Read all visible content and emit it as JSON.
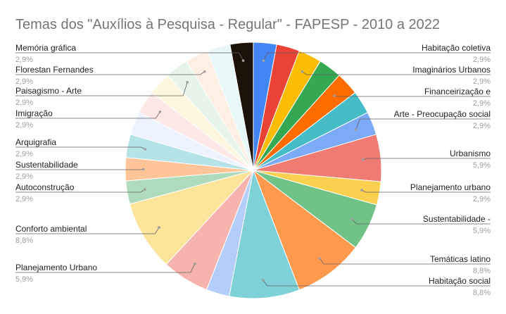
{
  "chart_data": {
    "type": "pie",
    "title": "Temas dos \"Auxílios à Pesquisa - Regular\" - FAPESP - 2010 a 2022",
    "slices": [
      {
        "label": "Habitação coletiva",
        "value": 2.9,
        "value_label": "2,9%",
        "color": "#4285f4",
        "labeled": true
      },
      {
        "label": "",
        "value": 2.9,
        "value_label": "",
        "color": "#ea4335",
        "labeled": false
      },
      {
        "label": "Imaginários Urbanos",
        "value": 2.9,
        "value_label": "2,9%",
        "color": "#fbbc04",
        "labeled": true
      },
      {
        "label": "",
        "value": 2.9,
        "value_label": "",
        "color": "#34a853",
        "labeled": false
      },
      {
        "label": "Financeirização e",
        "value": 2.9,
        "value_label": "2,9%",
        "color": "#ff6d01",
        "labeled": true
      },
      {
        "label": "",
        "value": 2.9,
        "value_label": "",
        "color": "#46bdc6",
        "labeled": false
      },
      {
        "label": "Arte - Preocupação social",
        "value": 2.9,
        "value_label": "2,9%",
        "color": "#7baaf7",
        "labeled": true
      },
      {
        "label": "Urbanismo",
        "value": 5.9,
        "value_label": "5,9%",
        "color": "#f07b72",
        "labeled": true
      },
      {
        "label": "Planejamento urbano",
        "value": 2.9,
        "value_label": "2,9%",
        "color": "#fcd04f",
        "labeled": true
      },
      {
        "label": "Sustentabilidade -",
        "value": 5.9,
        "value_label": "5,9%",
        "color": "#71c287",
        "labeled": true
      },
      {
        "label": "Temáticas latino",
        "value": 8.8,
        "value_label": "8,8%",
        "color": "#ff994d",
        "labeled": true
      },
      {
        "label": "Habitação social",
        "value": 8.8,
        "value_label": "8,8%",
        "color": "#7ed1d7",
        "labeled": true
      },
      {
        "label": "",
        "value": 2.9,
        "value_label": "",
        "color": "#b3cefb",
        "labeled": false
      },
      {
        "label": "Planejamento Urbano",
        "value": 5.9,
        "value_label": "5,9%",
        "color": "#f7b4ae",
        "labeled": true
      },
      {
        "label": "Conforto ambiental",
        "value": 8.8,
        "value_label": "8,8%",
        "color": "#fde49b",
        "labeled": true
      },
      {
        "label": "Autoconstrução",
        "value": 2.9,
        "value_label": "2,9%",
        "color": "#aedcba",
        "labeled": true
      },
      {
        "label": "Sustentabilidade",
        "value": 2.9,
        "value_label": "2,9%",
        "color": "#ffc599",
        "labeled": true
      },
      {
        "label": "Arquigrafia",
        "value": 2.9,
        "value_label": "2,9%",
        "color": "#b5e3e7",
        "labeled": true
      },
      {
        "label": "",
        "value": 2.9,
        "value_label": "",
        "color": "#ecf3fe",
        "labeled": false
      },
      {
        "label": "Imigração",
        "value": 2.9,
        "value_label": "2,9%",
        "color": "#fde8e6",
        "labeled": true
      },
      {
        "label": "",
        "value": 2.9,
        "value_label": "",
        "color": "#fef7e0",
        "labeled": false
      },
      {
        "label": "Paisagismo - Arte",
        "value": 2.9,
        "value_label": "2,9%",
        "color": "#e6f4ea",
        "labeled": true
      },
      {
        "label": "Florestan Fernandes",
        "value": 2.9,
        "value_label": "2,9%",
        "color": "#feefe3",
        "labeled": true
      },
      {
        "label": "",
        "value": 2.9,
        "value_label": "",
        "color": "#e8f7f8",
        "labeled": false
      },
      {
        "label": "Memória gráfica",
        "value": 2.9,
        "value_label": "2,9%",
        "color": "#1c1208",
        "labeled": true
      }
    ]
  }
}
